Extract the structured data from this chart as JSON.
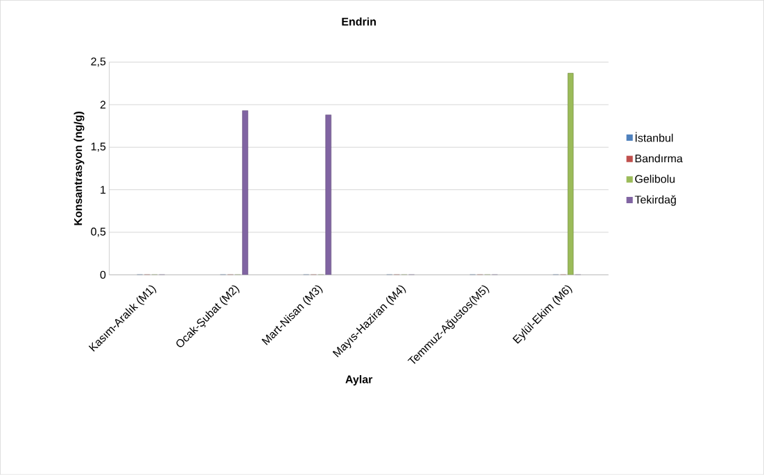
{
  "chart_data": {
    "type": "bar",
    "title": "Endrin",
    "xlabel": "Aylar",
    "ylabel": "Konsantrasyon (ng/g)",
    "categories": [
      "Kasım-Aralık (M1)",
      "Ocak-Şubat (M2)",
      "Mart-Nisan (M3)",
      "Mayıs-Haziran (M4)",
      "Temmuz-Ağustos(M5)",
      "Eylül-Ekim (M6)"
    ],
    "series": [
      {
        "name": "İstanbul",
        "color": "#4f81bd",
        "values": [
          0,
          0,
          0,
          0,
          0,
          0
        ]
      },
      {
        "name": "Bandırma",
        "color": "#c0504d",
        "values": [
          0,
          0,
          0,
          0,
          0,
          0
        ]
      },
      {
        "name": "Gelibolu",
        "color": "#9bbb59",
        "values": [
          0,
          0,
          0,
          0,
          0,
          2.37
        ]
      },
      {
        "name": "Tekirdağ",
        "color": "#8064a2",
        "values": [
          0,
          1.93,
          1.88,
          0,
          0,
          0
        ]
      }
    ],
    "ylim": [
      0,
      2.5
    ],
    "yticks": [
      0,
      {
        "value": 0.5,
        "label": "0,5"
      },
      1,
      {
        "value": 1.5,
        "label": "1,5"
      },
      2,
      {
        "value": 2.5,
        "label": "2,5"
      }
    ],
    "grid": "y",
    "legend": "right"
  }
}
